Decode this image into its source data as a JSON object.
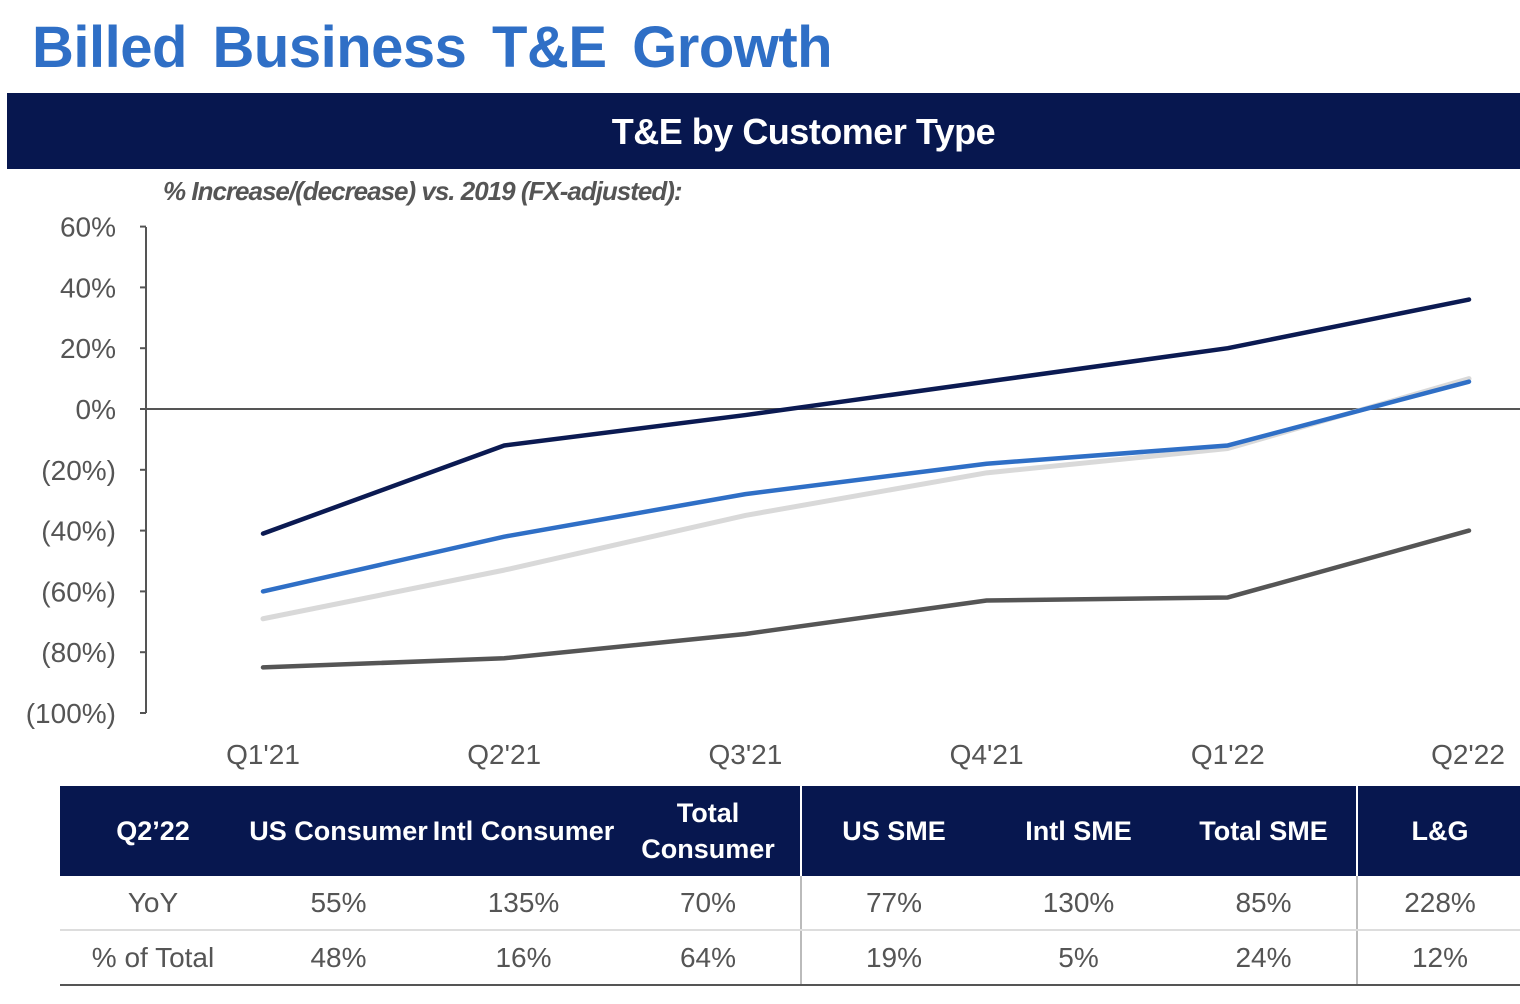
{
  "title": "Billed Business T&E Growth",
  "banner": "T&E by Customer Type",
  "subtitle": "% Increase/(decrease)  vs. 2019 (FX-adjusted):",
  "chart_data": {
    "type": "line",
    "title": "T&E by Customer Type",
    "ylabel": "% Increase/(decrease) vs. 2019 (FX-adjusted)",
    "categories": [
      "Q1'21",
      "Q2'21",
      "Q3'21",
      "Q4'21",
      "Q1'22",
      "Q2'22"
    ],
    "yticks": [
      60,
      40,
      20,
      0,
      -20,
      -40,
      -60,
      -80,
      -100
    ],
    "ytick_labels": [
      "60%",
      "40%",
      "20%",
      "0%",
      "(20%)",
      "(40%)",
      "(60%)",
      "(80%)",
      "(100%)"
    ],
    "ylim": [
      -100,
      60
    ],
    "series": [
      {
        "name": "navy",
        "color": "#0b1a52",
        "values": [
          -41,
          -12,
          -2,
          9,
          20,
          36
        ]
      },
      {
        "name": "light-gray",
        "color": "#d9d9d9",
        "values": [
          -69,
          -53,
          -35,
          -21,
          -13,
          10
        ]
      },
      {
        "name": "blue",
        "color": "#2f6fc6",
        "values": [
          -60,
          -42,
          -28,
          -18,
          -12,
          9
        ]
      },
      {
        "name": "dark-gray",
        "color": "#555555",
        "values": [
          -85,
          -82,
          -74,
          -63,
          -62,
          -40
        ]
      }
    ]
  },
  "table": {
    "headers": [
      "Q2’22",
      "US Consumer",
      "Intl Consumer",
      "Total Consumer",
      "US SME",
      "Intl SME",
      "Total SME",
      "L&G"
    ],
    "rows": [
      [
        "YoY",
        "55%",
        "135%",
        "70%",
        "77%",
        "130%",
        "85%",
        "228%"
      ],
      [
        "% of Total",
        "48%",
        "16%",
        "64%",
        "19%",
        "5%",
        "24%",
        "12%"
      ]
    ]
  }
}
